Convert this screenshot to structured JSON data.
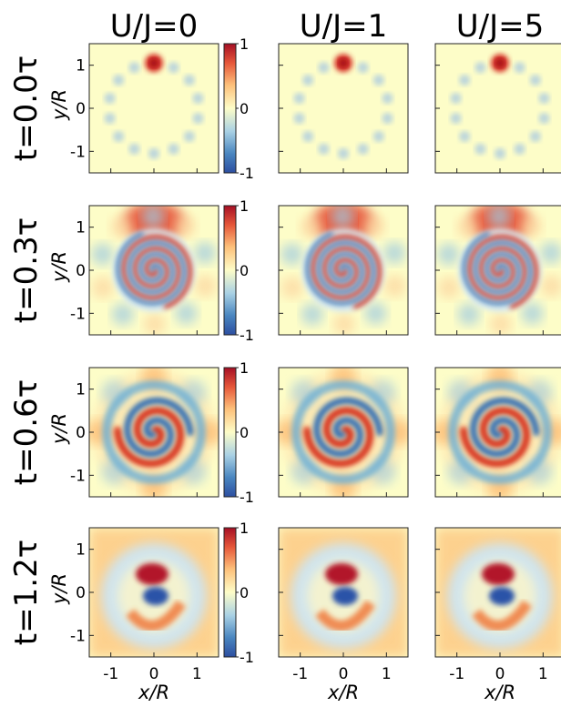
{
  "chart_data": {
    "type": "heatmap",
    "columns": [
      "U/J=0",
      "U/J=1",
      "U/J=5"
    ],
    "rows": [
      "t=0.0τ",
      "t=0.3τ",
      "t=0.6τ",
      "t=1.2τ"
    ],
    "xlabel": "x/R",
    "ylabel": "y/R",
    "x_ticks": [
      "-1",
      "0",
      "1"
    ],
    "y_ticks": [
      "1",
      "0",
      "-1"
    ],
    "x_range": [
      -1.5,
      1.5
    ],
    "y_range": [
      -1.5,
      1.5
    ],
    "colorbar": {
      "ticks": [
        "1",
        "0",
        "-1"
      ],
      "range": [
        -1,
        1
      ],
      "colormap": "RdYlBu_r"
    },
    "colors": {
      "pos": "#b2182b",
      "neg": "#2a52a8",
      "mid": "#fdfdc8"
    }
  }
}
